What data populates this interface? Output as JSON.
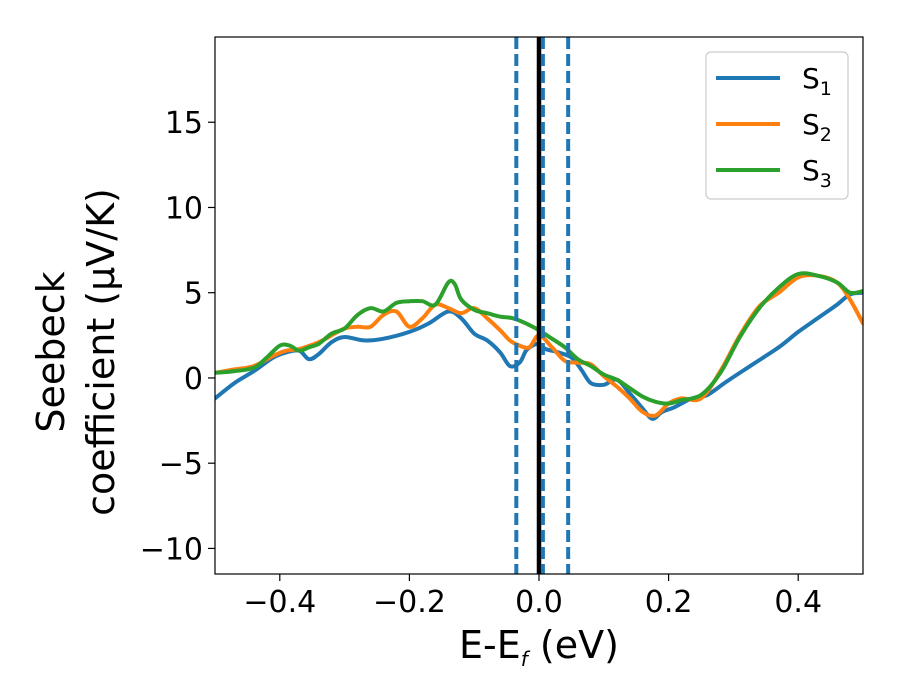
{
  "chart_data": {
    "type": "line",
    "xlabel": {
      "main": "E-E",
      "sub": "f",
      "rest": " (eV)"
    },
    "ylabel": {
      "line1": "Seebeck",
      "line2": "coefficient  (μV/K)"
    },
    "xlim": [
      -0.5,
      0.5
    ],
    "ylim": [
      -11.5,
      20
    ],
    "xticks": [
      -0.4,
      -0.2,
      0.0,
      0.2,
      0.4
    ],
    "xtick_labels": [
      "−0.4",
      "−0.2",
      "0.0",
      "0.2",
      "0.4"
    ],
    "yticks": [
      -10,
      -5,
      0,
      5,
      10,
      15
    ],
    "ytick_labels": [
      "−10",
      "−5",
      "0",
      "5",
      "10",
      "15"
    ],
    "legend_position": "top-right",
    "grid": false,
    "vlines": [
      {
        "x": 0.0,
        "style": "solid",
        "color": "#000000"
      },
      {
        "x": -0.035,
        "style": "dashed",
        "color": "#1f77b4"
      },
      {
        "x": 0.006,
        "style": "dashed",
        "color": "#1f77b4"
      },
      {
        "x": 0.045,
        "style": "dashed",
        "color": "#1f77b4"
      }
    ],
    "series": [
      {
        "name": "S",
        "name_sub": "1",
        "color": "#1f77b4",
        "x": [
          -0.5,
          -0.47,
          -0.44,
          -0.41,
          -0.39,
          -0.37,
          -0.355,
          -0.34,
          -0.32,
          -0.3,
          -0.27,
          -0.24,
          -0.2,
          -0.17,
          -0.14,
          -0.12,
          -0.1,
          -0.08,
          -0.06,
          -0.045,
          -0.03,
          -0.02,
          -0.01,
          0.0,
          0.01,
          0.03,
          0.05,
          0.065,
          0.08,
          0.1,
          0.12,
          0.14,
          0.16,
          0.175,
          0.19,
          0.21,
          0.23,
          0.245,
          0.26,
          0.29,
          0.33,
          0.37,
          0.4,
          0.43,
          0.46,
          0.48,
          0.5
        ],
        "y": [
          -1.2,
          -0.3,
          0.4,
          1.2,
          1.5,
          1.6,
          1.1,
          1.4,
          2.1,
          2.4,
          2.2,
          2.3,
          2.7,
          3.2,
          3.9,
          3.5,
          2.6,
          2.2,
          1.5,
          0.7,
          0.9,
          1.6,
          1.9,
          2.0,
          1.7,
          1.5,
          1.2,
          0.5,
          -0.3,
          -0.4,
          -0.1,
          -0.9,
          -1.8,
          -2.4,
          -2.0,
          -1.7,
          -1.3,
          -1.1,
          -1.0,
          -0.2,
          0.8,
          1.8,
          2.7,
          3.5,
          4.3,
          4.9,
          5.0
        ]
      },
      {
        "name": "S",
        "name_sub": "2",
        "color": "#ff7f0e",
        "x": [
          -0.5,
          -0.47,
          -0.44,
          -0.41,
          -0.39,
          -0.37,
          -0.34,
          -0.32,
          -0.3,
          -0.28,
          -0.26,
          -0.24,
          -0.22,
          -0.2,
          -0.18,
          -0.16,
          -0.14,
          -0.12,
          -0.1,
          -0.08,
          -0.06,
          -0.045,
          -0.03,
          -0.015,
          0.0,
          0.02,
          0.04,
          0.06,
          0.08,
          0.1,
          0.12,
          0.14,
          0.16,
          0.18,
          0.2,
          0.22,
          0.25,
          0.28,
          0.31,
          0.34,
          0.37,
          0.4,
          0.43,
          0.46,
          0.48,
          0.5
        ],
        "y": [
          0.3,
          0.5,
          0.7,
          1.3,
          1.6,
          1.7,
          2.1,
          2.5,
          2.9,
          3.0,
          3.0,
          3.7,
          3.9,
          3.0,
          3.5,
          4.3,
          4.1,
          3.8,
          4.1,
          3.5,
          2.8,
          2.2,
          1.9,
          1.8,
          2.5,
          1.8,
          1.0,
          0.9,
          0.8,
          0.1,
          -0.5,
          -1.2,
          -2.0,
          -2.2,
          -1.5,
          -1.2,
          -1.2,
          0.4,
          2.5,
          4.2,
          5.0,
          5.9,
          6.0,
          5.6,
          4.6,
          3.2
        ]
      },
      {
        "name": "S",
        "name_sub": "3",
        "color": "#2ca02c",
        "x": [
          -0.5,
          -0.47,
          -0.44,
          -0.42,
          -0.4,
          -0.385,
          -0.37,
          -0.355,
          -0.34,
          -0.32,
          -0.3,
          -0.28,
          -0.26,
          -0.24,
          -0.22,
          -0.2,
          -0.18,
          -0.16,
          -0.14,
          -0.13,
          -0.12,
          -0.1,
          -0.08,
          -0.06,
          -0.04,
          -0.02,
          0.0,
          0.02,
          0.04,
          0.06,
          0.08,
          0.1,
          0.12,
          0.14,
          0.16,
          0.18,
          0.2,
          0.22,
          0.25,
          0.28,
          0.31,
          0.34,
          0.37,
          0.4,
          0.43,
          0.46,
          0.48,
          0.5
        ],
        "y": [
          0.3,
          0.4,
          0.6,
          1.2,
          1.9,
          1.9,
          1.6,
          1.8,
          2.0,
          2.6,
          2.9,
          3.7,
          4.1,
          3.9,
          4.4,
          4.5,
          4.5,
          4.3,
          5.6,
          5.5,
          4.6,
          4.0,
          3.8,
          3.6,
          3.5,
          3.2,
          2.8,
          2.3,
          1.8,
          1.1,
          0.7,
          0.2,
          -0.1,
          -0.6,
          -1.1,
          -1.4,
          -1.5,
          -1.3,
          -1.0,
          0.3,
          2.4,
          4.1,
          5.3,
          6.1,
          6.0,
          5.6,
          5.0,
          5.1
        ]
      }
    ]
  }
}
